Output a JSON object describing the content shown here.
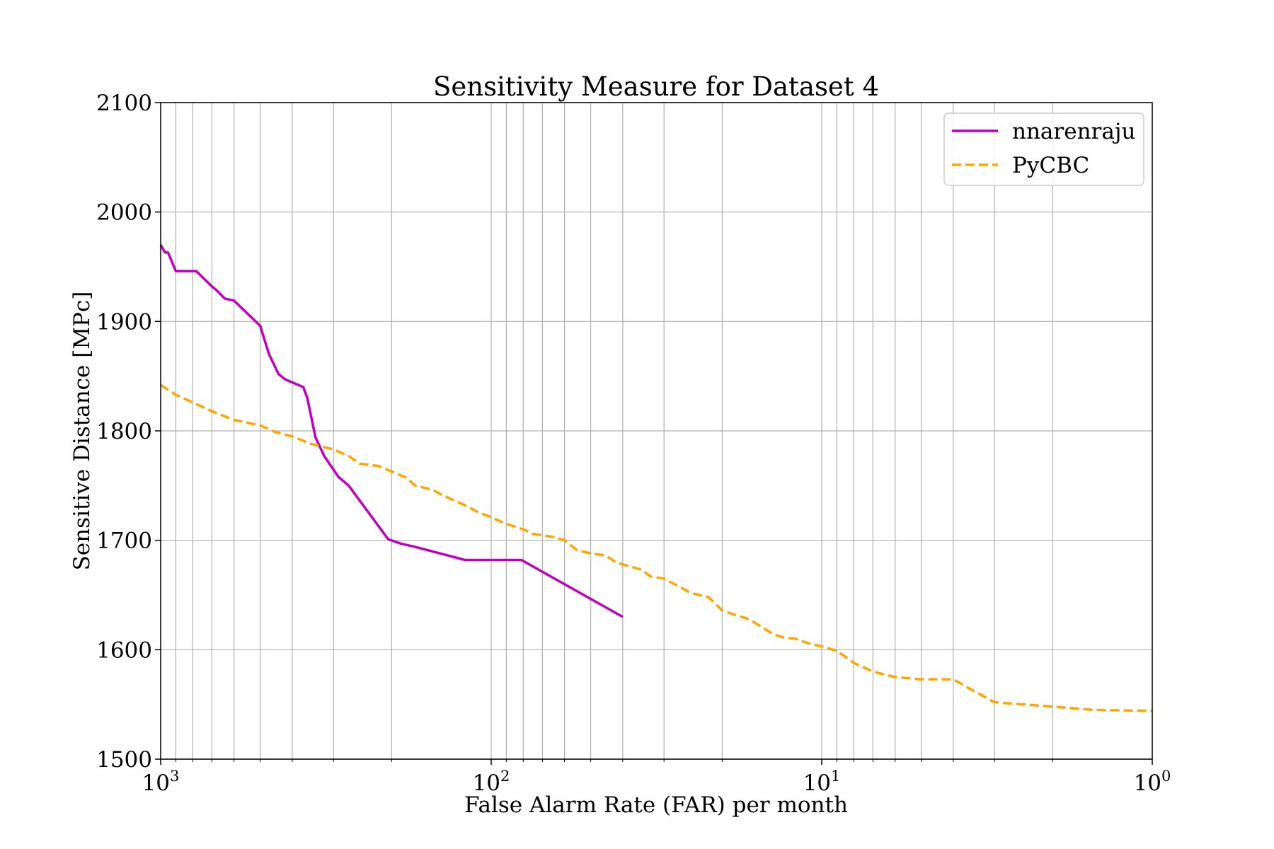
{
  "chart_data": {
    "type": "line",
    "title": "Sensitivity Measure for Dataset 4",
    "xlabel": "False Alarm Rate (FAR) per month",
    "ylabel": "Sensitive Distance [MPc]",
    "x_scale": "log",
    "x_reversed": true,
    "xlim": [
      1000,
      1
    ],
    "ylim": [
      1500,
      2100
    ],
    "grid": true,
    "grid_minor_x": true,
    "legend_position": "top-right",
    "x_ticks": [
      {
        "base": "10",
        "exp": "3",
        "value": 1000
      },
      {
        "base": "10",
        "exp": "2",
        "value": 100
      },
      {
        "base": "10",
        "exp": "1",
        "value": 10
      },
      {
        "base": "10",
        "exp": "0",
        "value": 1
      }
    ],
    "y_ticks": [
      "1500",
      "1600",
      "1700",
      "1800",
      "1900",
      "2000",
      "2100"
    ],
    "series": [
      {
        "name": "nnarenraju",
        "color": "#bf00bf",
        "style": "solid",
        "x": [
          1000,
          970,
          950,
          900,
          780,
          700,
          680,
          640,
          600,
          500,
          470,
          440,
          420,
          370,
          360,
          340,
          320,
          290,
          270,
          205,
          188,
          170,
          120,
          100,
          81,
          40
        ],
        "y": [
          1970,
          1963,
          1963,
          1946,
          1946,
          1932,
          1929,
          1921,
          1919,
          1896,
          1870,
          1852,
          1847,
          1840,
          1830,
          1794,
          1777,
          1758,
          1750,
          1701,
          1697,
          1694,
          1682,
          1682,
          1682,
          1630
        ]
      },
      {
        "name": "PyCBC",
        "color": "#ffa500",
        "style": "dashed",
        "x": [
          1000,
          900,
          800,
          700,
          600,
          500,
          450,
          400,
          350,
          300,
          270,
          250,
          220,
          180,
          170,
          150,
          140,
          120,
          110,
          100,
          90,
          80,
          75,
          65,
          60,
          55,
          50,
          45,
          42,
          40,
          35,
          33,
          30,
          26,
          25,
          22,
          20,
          18,
          17,
          16,
          14,
          13,
          12,
          11,
          10,
          9,
          8,
          7,
          6,
          5,
          4,
          3.5,
          3,
          2,
          1.5,
          1
        ],
        "y": [
          1842,
          1833,
          1826,
          1818,
          1810,
          1805,
          1799,
          1795,
          1788,
          1783,
          1777,
          1770,
          1768,
          1757,
          1750,
          1746,
          1741,
          1732,
          1726,
          1721,
          1715,
          1710,
          1706,
          1703,
          1700,
          1691,
          1688,
          1686,
          1680,
          1678,
          1673,
          1667,
          1665,
          1655,
          1652,
          1648,
          1636,
          1631,
          1629,
          1625,
          1614,
          1611,
          1610,
          1606,
          1603,
          1599,
          1588,
          1580,
          1575,
          1573,
          1573,
          1563,
          1552,
          1548,
          1545,
          1544
        ]
      }
    ]
  }
}
